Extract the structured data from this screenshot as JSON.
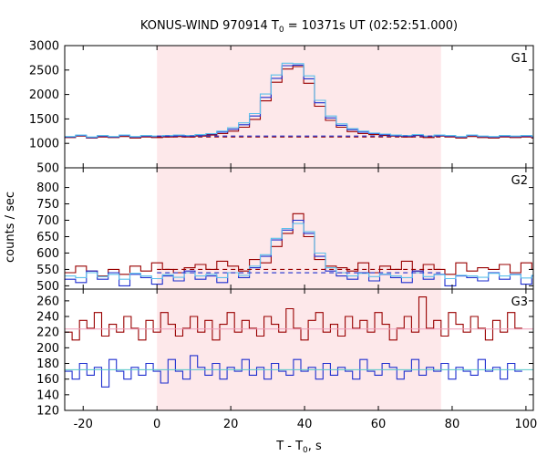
{
  "title_main": "KONUS-WIND 970914 T",
  "title_sub": "0",
  "title_rest": " = 10371s UT (02:52:51.000)",
  "xlabel_main": "T - T",
  "xlabel_sub": "0",
  "xlabel_rest": ", s",
  "ylabel": "counts / sec",
  "colors": {
    "red": "#990000",
    "blue": "#1f2fcf",
    "lightblue": "#5bc0eb",
    "pink_line": "#ee9eb7",
    "cyan_line": "#55c8c8",
    "shade": "#fde8ea"
  },
  "chart_data": {
    "type": "line",
    "xlim": [
      -25,
      102
    ],
    "xticks": [
      -20,
      0,
      20,
      40,
      60,
      80,
      100
    ],
    "shaded_interval": [
      0,
      77
    ],
    "panels": [
      {
        "name": "G1",
        "ylim": [
          500,
          3000
        ],
        "yticks": [
          500,
          1000,
          1500,
          2000,
          2500,
          3000
        ],
        "grid": false,
        "series": [
          {
            "color": "red",
            "style": "step",
            "x0": -25,
            "dx": 2.944,
            "values": [
              1120,
              1150,
              1110,
              1130,
              1120,
              1140,
              1110,
              1130,
              1120,
              1130,
              1140,
              1130,
              1150,
              1170,
              1200,
              1250,
              1330,
              1490,
              1870,
              2250,
              2520,
              2570,
              2230,
              1760,
              1470,
              1330,
              1240,
              1200,
              1180,
              1160,
              1150,
              1130,
              1160,
              1120,
              1150,
              1130,
              1110,
              1140,
              1120,
              1110,
              1130,
              1120,
              1130,
              1110
            ]
          },
          {
            "color": "blue",
            "style": "step",
            "x0": -25,
            "dx": 2.944,
            "values": [
              1130,
              1160,
              1120,
              1150,
              1130,
              1160,
              1130,
              1150,
              1140,
              1150,
              1160,
              1150,
              1170,
              1190,
              1230,
              1290,
              1380,
              1560,
              1940,
              2330,
              2590,
              2600,
              2320,
              1830,
              1520,
              1370,
              1280,
              1230,
              1200,
              1180,
              1160,
              1150,
              1170,
              1140,
              1160,
              1150,
              1130,
              1160,
              1140,
              1130,
              1150,
              1140,
              1150,
              1130
            ]
          },
          {
            "color": "lightblue",
            "style": "step",
            "x0": -25,
            "dx": 2.944,
            "values": [
              1140,
              1170,
              1130,
              1160,
              1140,
              1170,
              1140,
              1160,
              1150,
              1160,
              1170,
              1160,
              1180,
              1200,
              1250,
              1320,
              1420,
              1610,
              2010,
              2400,
              2640,
              2630,
              2380,
              1880,
              1560,
              1400,
              1300,
              1250,
              1210,
              1190,
              1170,
              1160,
              1180,
              1150,
              1170,
              1160,
              1140,
              1170,
              1150,
              1140,
              1160,
              1150,
              1160,
              1140
            ]
          },
          {
            "color": "red",
            "style": "dashed",
            "x": [
              0,
              77
            ],
            "y": [
              1130,
              1130
            ]
          },
          {
            "color": "blue",
            "style": "dashed",
            "x": [
              0,
              77
            ],
            "y": [
              1150,
              1150
            ]
          }
        ]
      },
      {
        "name": "G2",
        "ylim": [
          490,
          860
        ],
        "yticks": [
          500,
          550,
          600,
          650,
          700,
          750,
          800
        ],
        "grid": false,
        "series": [
          {
            "color": "red",
            "style": "step",
            "x0": -25,
            "dx": 2.944,
            "values": [
              540,
              560,
              545,
              530,
              550,
              535,
              560,
              545,
              570,
              550,
              540,
              555,
              565,
              550,
              575,
              560,
              545,
              580,
              570,
              620,
              660,
              720,
              650,
              580,
              560,
              555,
              545,
              570,
              540,
              560,
              550,
              575,
              545,
              565,
              550,
              535,
              570,
              545,
              555,
              550,
              565,
              540,
              570,
              550
            ]
          },
          {
            "color": "blue",
            "style": "step",
            "x0": -25,
            "dx": 2.944,
            "values": [
              520,
              510,
              545,
              520,
              540,
              500,
              535,
              525,
              505,
              530,
              515,
              545,
              520,
              530,
              510,
              540,
              525,
              555,
              590,
              640,
              670,
              700,
              660,
              590,
              545,
              530,
              520,
              540,
              515,
              535,
              525,
              510,
              545,
              520,
              535,
              500,
              530,
              525,
              515,
              540,
              520,
              535,
              505,
              530
            ]
          },
          {
            "color": "lightblue",
            "style": "step",
            "x0": -25,
            "dx": 2.944,
            "values": [
              530,
              525,
              540,
              528,
              535,
              520,
              538,
              530,
              522,
              534,
              526,
              540,
              530,
              535,
              525,
              540,
              532,
              560,
              595,
              645,
              675,
              690,
              665,
              600,
              555,
              540,
              530,
              538,
              528,
              536,
              530,
              525,
              540,
              528,
              534,
              522,
              532,
              530,
              526,
              538,
              530,
              534,
              524,
              532
            ]
          },
          {
            "color": "red",
            "style": "dashed",
            "x": [
              0,
              77
            ],
            "y": [
              550,
              550
            ]
          },
          {
            "color": "blue",
            "style": "dashed",
            "x": [
              0,
              77
            ],
            "y": [
              540,
              540
            ]
          }
        ]
      },
      {
        "name": "G3",
        "ylim": [
          120,
          275
        ],
        "yticks": [
          120,
          140,
          160,
          180,
          200,
          220,
          240,
          260
        ],
        "grid": false,
        "series": [
          {
            "color": "red",
            "style": "step",
            "x0": -25,
            "dx": 2.0,
            "values": [
              220,
              210,
              235,
              225,
              245,
              215,
              230,
              220,
              240,
              225,
              210,
              235,
              220,
              245,
              230,
              215,
              225,
              240,
              220,
              235,
              210,
              230,
              245,
              220,
              235,
              225,
              215,
              240,
              230,
              220,
              250,
              225,
              210,
              235,
              245,
              220,
              230,
              215,
              240,
              225,
              235,
              220,
              245,
              230,
              210,
              225,
              240,
              220,
              265,
              225,
              235,
              215,
              245,
              230,
              220,
              240,
              225,
              210,
              235,
              220,
              245,
              225
            ]
          },
          {
            "color": "blue",
            "style": "step",
            "x0": -25,
            "dx": 2.0,
            "values": [
              170,
              160,
              180,
              165,
              175,
              150,
              185,
              170,
              160,
              175,
              165,
              180,
              170,
              155,
              185,
              170,
              160,
              190,
              175,
              165,
              180,
              160,
              175,
              170,
              185,
              165,
              175,
              160,
              180,
              170,
              165,
              185,
              170,
              175,
              160,
              180,
              165,
              175,
              170,
              160,
              185,
              170,
              165,
              180,
              175,
              160,
              170,
              185,
              165,
              175,
              170,
              180,
              160,
              175,
              170,
              165,
              185,
              170,
              175,
              160,
              180,
              170
            ]
          },
          {
            "color": "pink_line",
            "style": "flat",
            "x": [
              -25,
              102
            ],
            "y": [
              224,
              224
            ]
          },
          {
            "color": "cyan_line",
            "style": "flat",
            "x": [
              -25,
              102
            ],
            "y": [
              172,
              172
            ]
          }
        ]
      }
    ]
  }
}
